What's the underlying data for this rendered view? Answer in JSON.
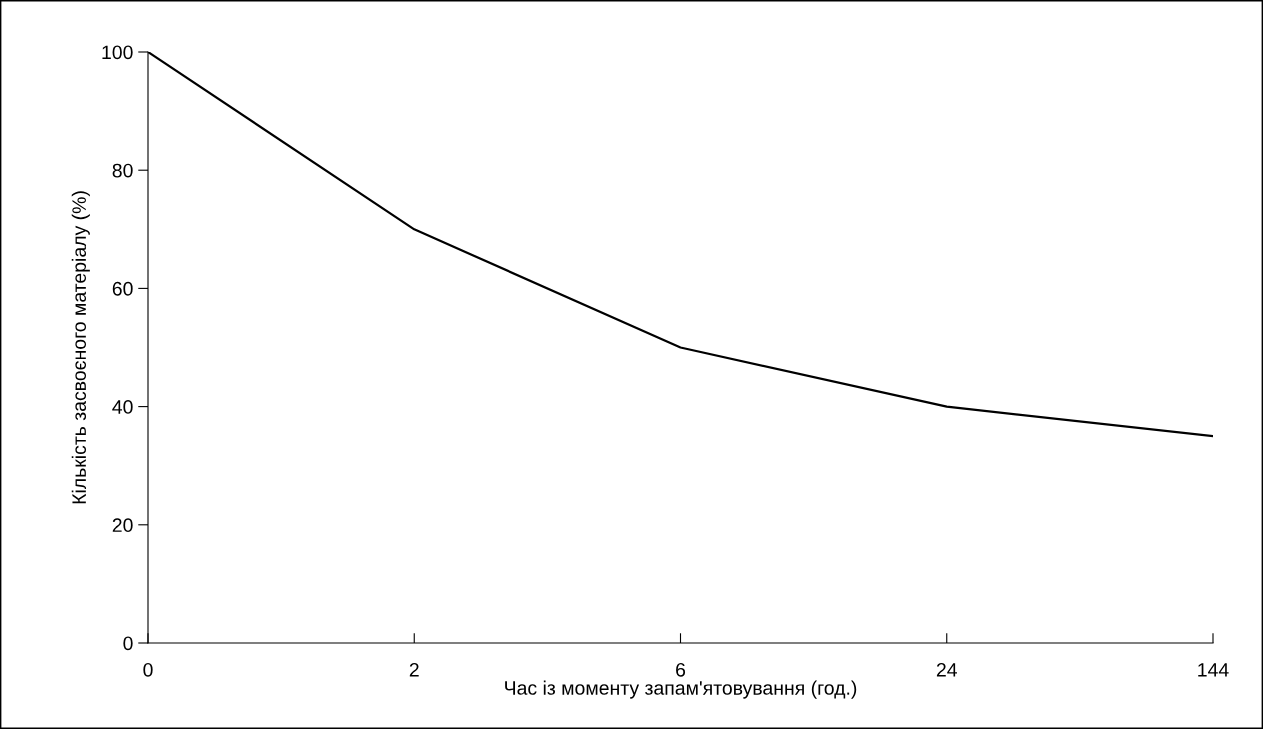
{
  "chart_data": {
    "type": "line",
    "xlabel": "Час із моменту запам'ятовування (год.)",
    "ylabel": "Кількість засвоєного матеріалу (%)",
    "categories": [
      "0",
      "2",
      "6",
      "24",
      "144"
    ],
    "series": [
      {
        "color": "#000000",
        "values": [
          100,
          70,
          50,
          40,
          35
        ]
      }
    ],
    "ylim": [
      0,
      100
    ],
    "yticks": [
      0,
      20,
      40,
      60,
      80,
      100
    ],
    "grid": false,
    "legend": false,
    "marker": "none",
    "line_style": "solid"
  }
}
